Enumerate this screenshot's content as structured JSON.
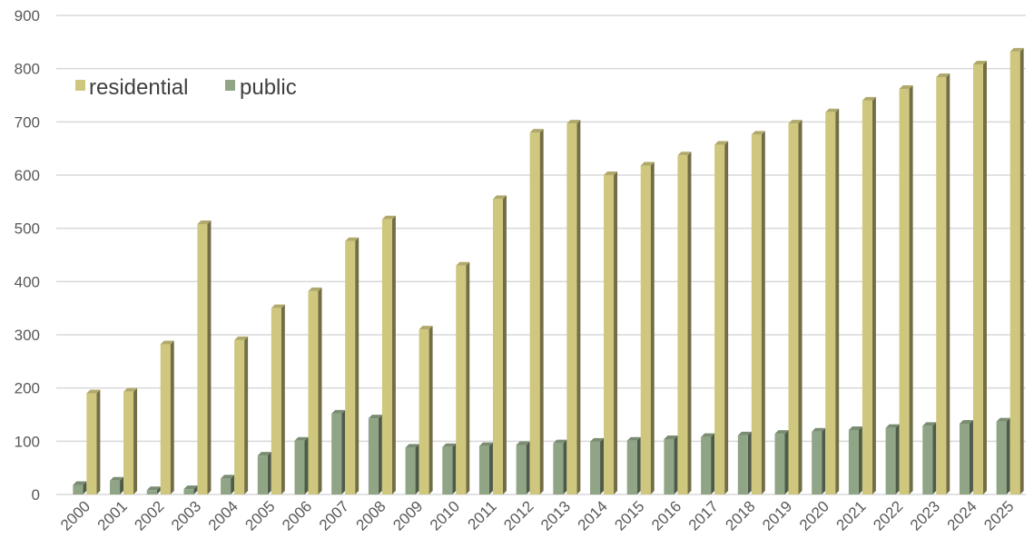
{
  "chart_data": {
    "type": "bar",
    "categories": [
      "2000",
      "2001",
      "2002",
      "2003",
      "2004",
      "2005",
      "2006",
      "2007",
      "2008",
      "2009",
      "2010",
      "2011",
      "2012",
      "2013",
      "2014",
      "2015",
      "2016",
      "2017",
      "2018",
      "2019",
      "2020",
      "2021",
      "2022",
      "2023",
      "2024",
      "2025"
    ],
    "series": [
      {
        "name": "residential",
        "color": "#cfc77e",
        "values": [
          190,
          193,
          282,
          508,
          290,
          350,
          382,
          476,
          517,
          310,
          430,
          555,
          680,
          697,
          600,
          618,
          637,
          657,
          676,
          697,
          718,
          740,
          762,
          784,
          808,
          832
        ]
      },
      {
        "name": "public",
        "color": "#8fa585",
        "values": [
          18,
          26,
          8,
          10,
          30,
          73,
          101,
          152,
          143,
          88,
          89,
          91,
          93,
          96,
          99,
          101,
          104,
          108,
          111,
          114,
          118,
          121,
          125,
          129,
          133,
          137
        ]
      }
    ],
    "ylim": [
      0,
      900
    ],
    "yticks": [
      0,
      100,
      200,
      300,
      400,
      500,
      600,
      700,
      800,
      900
    ],
    "grid": true,
    "legend_position": "top-left",
    "title": "",
    "xlabel": "",
    "ylabel": ""
  }
}
